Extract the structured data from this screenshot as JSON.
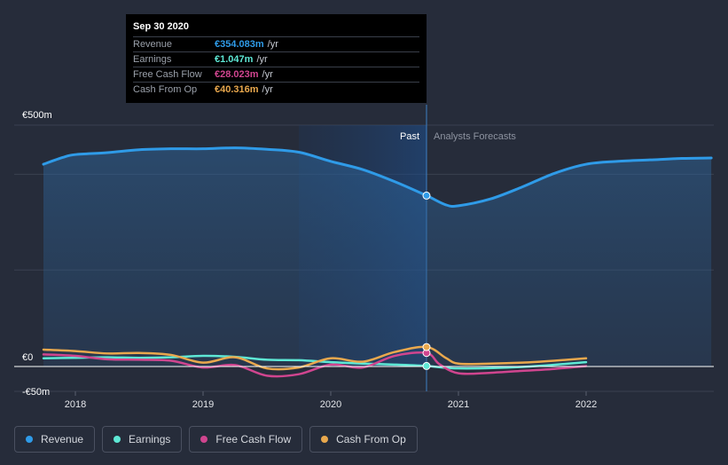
{
  "tooltip": {
    "date": "Sep 30 2020",
    "rows": [
      {
        "label": "Revenue",
        "value": "€354.083m",
        "unit": "/yr",
        "color": "#2f9be8"
      },
      {
        "label": "Earnings",
        "value": "€1.047m",
        "unit": "/yr",
        "color": "#5ee8d5"
      },
      {
        "label": "Free Cash Flow",
        "value": "€28.023m",
        "unit": "/yr",
        "color": "#d0458f"
      },
      {
        "label": "Cash From Op",
        "value": "€40.316m",
        "unit": "/yr",
        "color": "#e9a84d"
      }
    ]
  },
  "labels": {
    "past": "Past",
    "forecast": "Analysts Forecasts"
  },
  "legend": [
    {
      "label": "Revenue",
      "color": "#2f9be8"
    },
    {
      "label": "Earnings",
      "color": "#5ee8d5"
    },
    {
      "label": "Free Cash Flow",
      "color": "#d0458f"
    },
    {
      "label": "Cash From Op",
      "color": "#e9a84d"
    }
  ],
  "chart_data": {
    "type": "line",
    "title": "",
    "xlabel": "",
    "ylabel": "",
    "ylim": [
      -50,
      500
    ],
    "xlim": [
      2017.55,
      2022.98
    ],
    "y_ticks": [
      500,
      0,
      -50
    ],
    "y_tick_labels": [
      "€500m",
      "€0",
      "-€50m"
    ],
    "x_ticks": [
      2018,
      2019,
      2020,
      2021,
      2022
    ],
    "x_tick_labels": [
      "2018",
      "2019",
      "2020",
      "2021",
      "2022"
    ],
    "past_end": 2020.75,
    "highlight_start": 2019.75,
    "series": [
      {
        "name": "Revenue",
        "color": "#2f9be8",
        "fill": true,
        "x": [
          2017.75,
          2017.9,
          2018.0,
          2018.25,
          2018.5,
          2018.75,
          2019.0,
          2019.25,
          2019.5,
          2019.75,
          2020.0,
          2020.25,
          2020.5,
          2020.75,
          2020.9,
          2021.0,
          2021.25,
          2021.5,
          2021.75,
          2022.0,
          2022.25,
          2022.5,
          2022.75,
          2022.98
        ],
        "y": [
          419,
          433,
          439,
          443,
          449,
          451,
          451,
          453,
          450,
          444,
          425,
          408,
          383,
          354,
          335,
          333,
          347,
          372,
          400,
          419,
          425,
          428,
          431,
          432
        ]
      },
      {
        "name": "Earnings",
        "color": "#5ee8d5",
        "x": [
          2017.75,
          2018.0,
          2018.25,
          2018.5,
          2018.75,
          2019.0,
          2019.25,
          2019.5,
          2019.75,
          2020.0,
          2020.25,
          2020.5,
          2020.75,
          2021.0,
          2021.5,
          2022.0
        ],
        "y": [
          17,
          18,
          19,
          18,
          19,
          22,
          20,
          14,
          13,
          9,
          6,
          4,
          1.047,
          -4,
          -1,
          9
        ]
      },
      {
        "name": "Free Cash Flow",
        "color": "#d0458f",
        "x": [
          2017.75,
          2018.0,
          2018.25,
          2018.5,
          2018.75,
          2019.0,
          2019.25,
          2019.5,
          2019.75,
          2020.0,
          2020.25,
          2020.5,
          2020.75,
          2020.85,
          2021.0,
          2021.25,
          2021.5,
          2021.75,
          2022.0
        ],
        "y": [
          25,
          22,
          15,
          14,
          12,
          -2,
          3,
          -19,
          -16,
          4,
          -2,
          22,
          28.023,
          5,
          -14,
          -13,
          -9,
          -5,
          1
        ]
      },
      {
        "name": "Cash From Op",
        "color": "#e9a84d",
        "x": [
          2017.75,
          2018.0,
          2018.25,
          2018.5,
          2018.75,
          2019.0,
          2019.25,
          2019.5,
          2019.75,
          2020.0,
          2020.25,
          2020.5,
          2020.75,
          2020.9,
          2021.0,
          2021.25,
          2021.5,
          2021.75,
          2022.0
        ],
        "y": [
          35,
          32,
          27,
          28,
          24,
          8,
          19,
          -4,
          -2,
          17,
          10,
          30,
          40.316,
          18,
          6,
          6,
          8,
          12,
          17
        ]
      }
    ]
  }
}
